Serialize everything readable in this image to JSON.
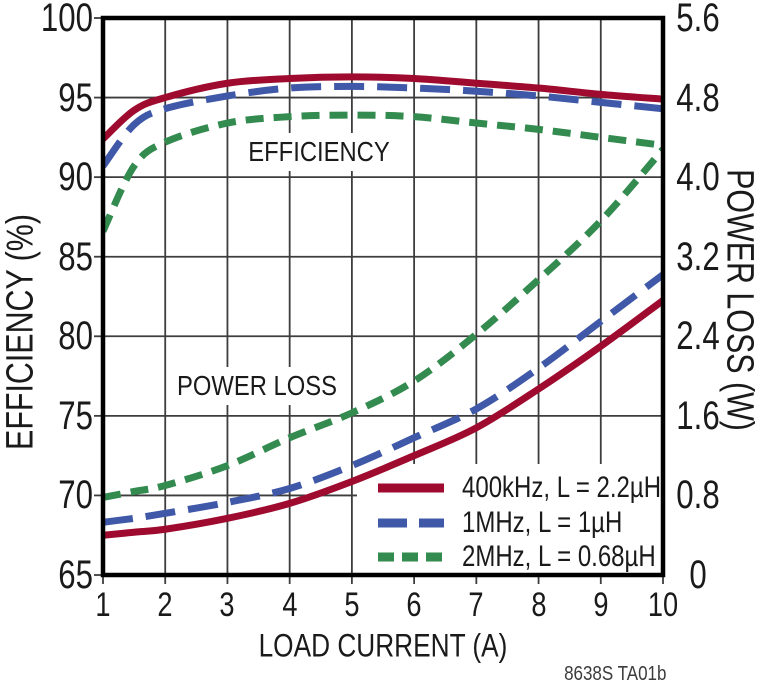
{
  "figure": {
    "note": "8638S TA01b",
    "background": "#FFFFFF",
    "frame_color": "#000000",
    "grid_color": "#3d3d3d"
  },
  "chart_data": {
    "type": "line",
    "title": "",
    "grid": true,
    "legend_position": "bottom-right",
    "x_axis": {
      "label": "LOAD CURRENT (A)",
      "range": [
        1,
        10
      ],
      "ticks": [
        1,
        2,
        3,
        4,
        5,
        6,
        7,
        8,
        9,
        10
      ]
    },
    "left_axis": {
      "label": "EFFICIENCY (%)",
      "range": [
        65,
        100
      ],
      "tick_step": 5,
      "ticks": [
        100,
        95,
        90,
        85,
        80,
        75,
        70,
        65
      ]
    },
    "right_axis": {
      "label": "POWER LOSS (W)",
      "range": [
        0,
        5.6
      ],
      "tick_step": 0.8,
      "ticks": [
        "5.6",
        "4.8",
        "4.0",
        "3.2",
        "2.4",
        "1.6",
        "0.8",
        "0"
      ]
    },
    "in_plot_labels": {
      "efficiency": "EFFICIENCY",
      "power_loss": "POWER LOSS"
    },
    "x": [
      1,
      1.5,
      2,
      3,
      4,
      5,
      6,
      7,
      8,
      9,
      10
    ],
    "series": [
      {
        "name": "400kHz, L = 2.2µH",
        "color": "#9E0B2F",
        "line_style": "solid",
        "efficiency_pct": [
          92.4,
          94.2,
          95.0,
          95.9,
          96.2,
          96.3,
          96.2,
          95.9,
          95.6,
          95.2,
          94.9
        ],
        "power_loss_w": [
          0.4,
          0.43,
          0.46,
          0.57,
          0.72,
          0.94,
          1.2,
          1.48,
          1.87,
          2.3,
          2.76
        ]
      },
      {
        "name": "1MHz, L = 1µH",
        "color": "#3F58A8",
        "line_style": "long-dash",
        "efficiency_pct": [
          90.7,
          93.3,
          94.3,
          95.1,
          95.6,
          95.7,
          95.6,
          95.4,
          95.1,
          94.7,
          94.3
        ],
        "power_loss_w": [
          0.53,
          0.57,
          0.62,
          0.73,
          0.87,
          1.1,
          1.38,
          1.67,
          2.08,
          2.55,
          3.02
        ]
      },
      {
        "name": "2MHz, L = 0.68µH",
        "color": "#338B4F",
        "line_style": "short-dash",
        "efficiency_pct": [
          86.6,
          90.7,
          92.2,
          93.4,
          93.8,
          93.9,
          93.8,
          93.4,
          93.0,
          92.5,
          92.0
        ],
        "power_loss_w": [
          0.78,
          0.84,
          0.9,
          1.1,
          1.38,
          1.63,
          1.95,
          2.42,
          2.97,
          3.56,
          4.28
        ]
      }
    ]
  }
}
